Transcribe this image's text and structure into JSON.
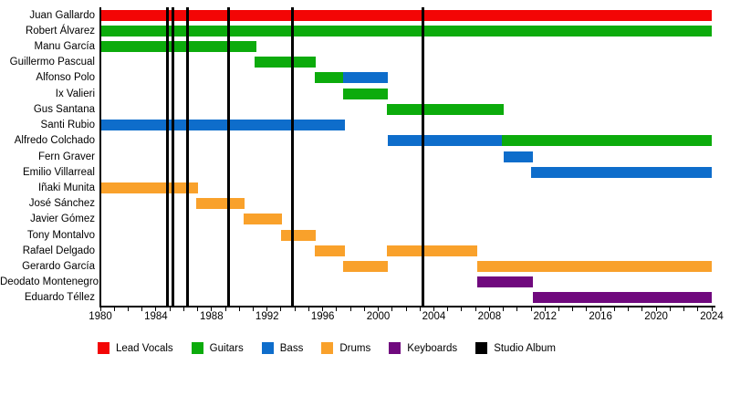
{
  "chart_data": {
    "type": "timeline",
    "title": "",
    "x_axis": {
      "min": 1980,
      "max": 2024,
      "major_tick_step": 4,
      "minor_tick_step": 1,
      "tick_labels": [
        "1980",
        "1984",
        "1988",
        "1992",
        "1996",
        "2000",
        "2004",
        "2008",
        "2012",
        "2016",
        "2020",
        "2024"
      ]
    },
    "roles": {
      "Lead Vocals": "#f30505",
      "Guitars": "#0cab0c",
      "Bass": "#0e6dcb",
      "Drums": "#f9a12b",
      "Keyboards": "#70097e"
    },
    "members": [
      {
        "name": "Juan Gallardo",
        "stints": [
          {
            "role": "Lead Vocals",
            "start": 1980,
            "end": 2024
          }
        ]
      },
      {
        "name": "Robert Álvarez",
        "stints": [
          {
            "role": "Guitars",
            "start": 1980,
            "end": 2024
          }
        ]
      },
      {
        "name": "Manu García",
        "stints": [
          {
            "role": "Guitars",
            "start": 1980,
            "end": 1991.2
          }
        ]
      },
      {
        "name": "Guillermo Pascual",
        "stints": [
          {
            "role": "Guitars",
            "start": 1991.1,
            "end": 1995.5
          }
        ]
      },
      {
        "name": "Alfonso Polo",
        "stints": [
          {
            "role": "Guitars",
            "start": 1995.4,
            "end": 1997.5
          },
          {
            "role": "Bass",
            "start": 1997.5,
            "end": 2000.7
          }
        ]
      },
      {
        "name": "Ix Valieri",
        "stints": [
          {
            "role": "Guitars",
            "start": 1997.5,
            "end": 2000.7
          }
        ]
      },
      {
        "name": "Gus Santana",
        "stints": [
          {
            "role": "Guitars",
            "start": 2000.6,
            "end": 2009.0
          }
        ]
      },
      {
        "name": "Santi Rubio",
        "stints": [
          {
            "role": "Bass",
            "start": 1980,
            "end": 1997.6
          }
        ]
      },
      {
        "name": "Alfredo Colchado",
        "stints": [
          {
            "role": "Bass",
            "start": 2000.7,
            "end": 2008.9
          },
          {
            "role": "Guitars",
            "start": 2008.9,
            "end": 2024
          }
        ]
      },
      {
        "name": "Fern Graver",
        "stints": [
          {
            "role": "Bass",
            "start": 2009.0,
            "end": 2011.1
          }
        ]
      },
      {
        "name": "Emilio Villarreal",
        "stints": [
          {
            "role": "Bass",
            "start": 2011.0,
            "end": 2024
          }
        ]
      },
      {
        "name": "Iñaki Munita",
        "stints": [
          {
            "role": "Drums",
            "start": 1980,
            "end": 1987.0
          }
        ]
      },
      {
        "name": "José Sánchez",
        "stints": [
          {
            "role": "Drums",
            "start": 1986.9,
            "end": 1990.4
          }
        ]
      },
      {
        "name": "Javier Gómez",
        "stints": [
          {
            "role": "Drums",
            "start": 1990.3,
            "end": 1993.1
          }
        ]
      },
      {
        "name": "Tony Montalvo",
        "stints": [
          {
            "role": "Drums",
            "start": 1993.0,
            "end": 1995.5
          }
        ]
      },
      {
        "name": "Rafael Delgado",
        "stints": [
          {
            "role": "Drums",
            "start": 1995.4,
            "end": 1997.6
          },
          {
            "role": "Drums",
            "start": 2000.6,
            "end": 2007.1
          }
        ]
      },
      {
        "name": "Gerardo García",
        "stints": [
          {
            "role": "Drums",
            "start": 1997.5,
            "end": 2000.7
          },
          {
            "role": "Drums",
            "start": 2007.1,
            "end": 2024
          }
        ]
      },
      {
        "name": "Deodato Montenegro",
        "stints": [
          {
            "role": "Keyboards",
            "start": 2007.1,
            "end": 2011.1
          }
        ]
      },
      {
        "name": "Eduardo Téllez",
        "stints": [
          {
            "role": "Keyboards",
            "start": 2011.1,
            "end": 2024
          }
        ]
      }
    ],
    "studio_albums": {
      "label": "Studio Album",
      "color": "#000000",
      "years": [
        1984.8,
        1985.2,
        1986.3,
        1989.2,
        1993.8,
        2003.2
      ]
    },
    "legend": [
      {
        "label": "Lead Vocals",
        "color": "#f30505"
      },
      {
        "label": "Guitars",
        "color": "#0cab0c"
      },
      {
        "label": "Bass",
        "color": "#0e6dcb"
      },
      {
        "label": "Drums",
        "color": "#f9a12b"
      },
      {
        "label": "Keyboards",
        "color": "#70097e"
      },
      {
        "label": "Studio Album",
        "color": "#000000"
      }
    ]
  }
}
